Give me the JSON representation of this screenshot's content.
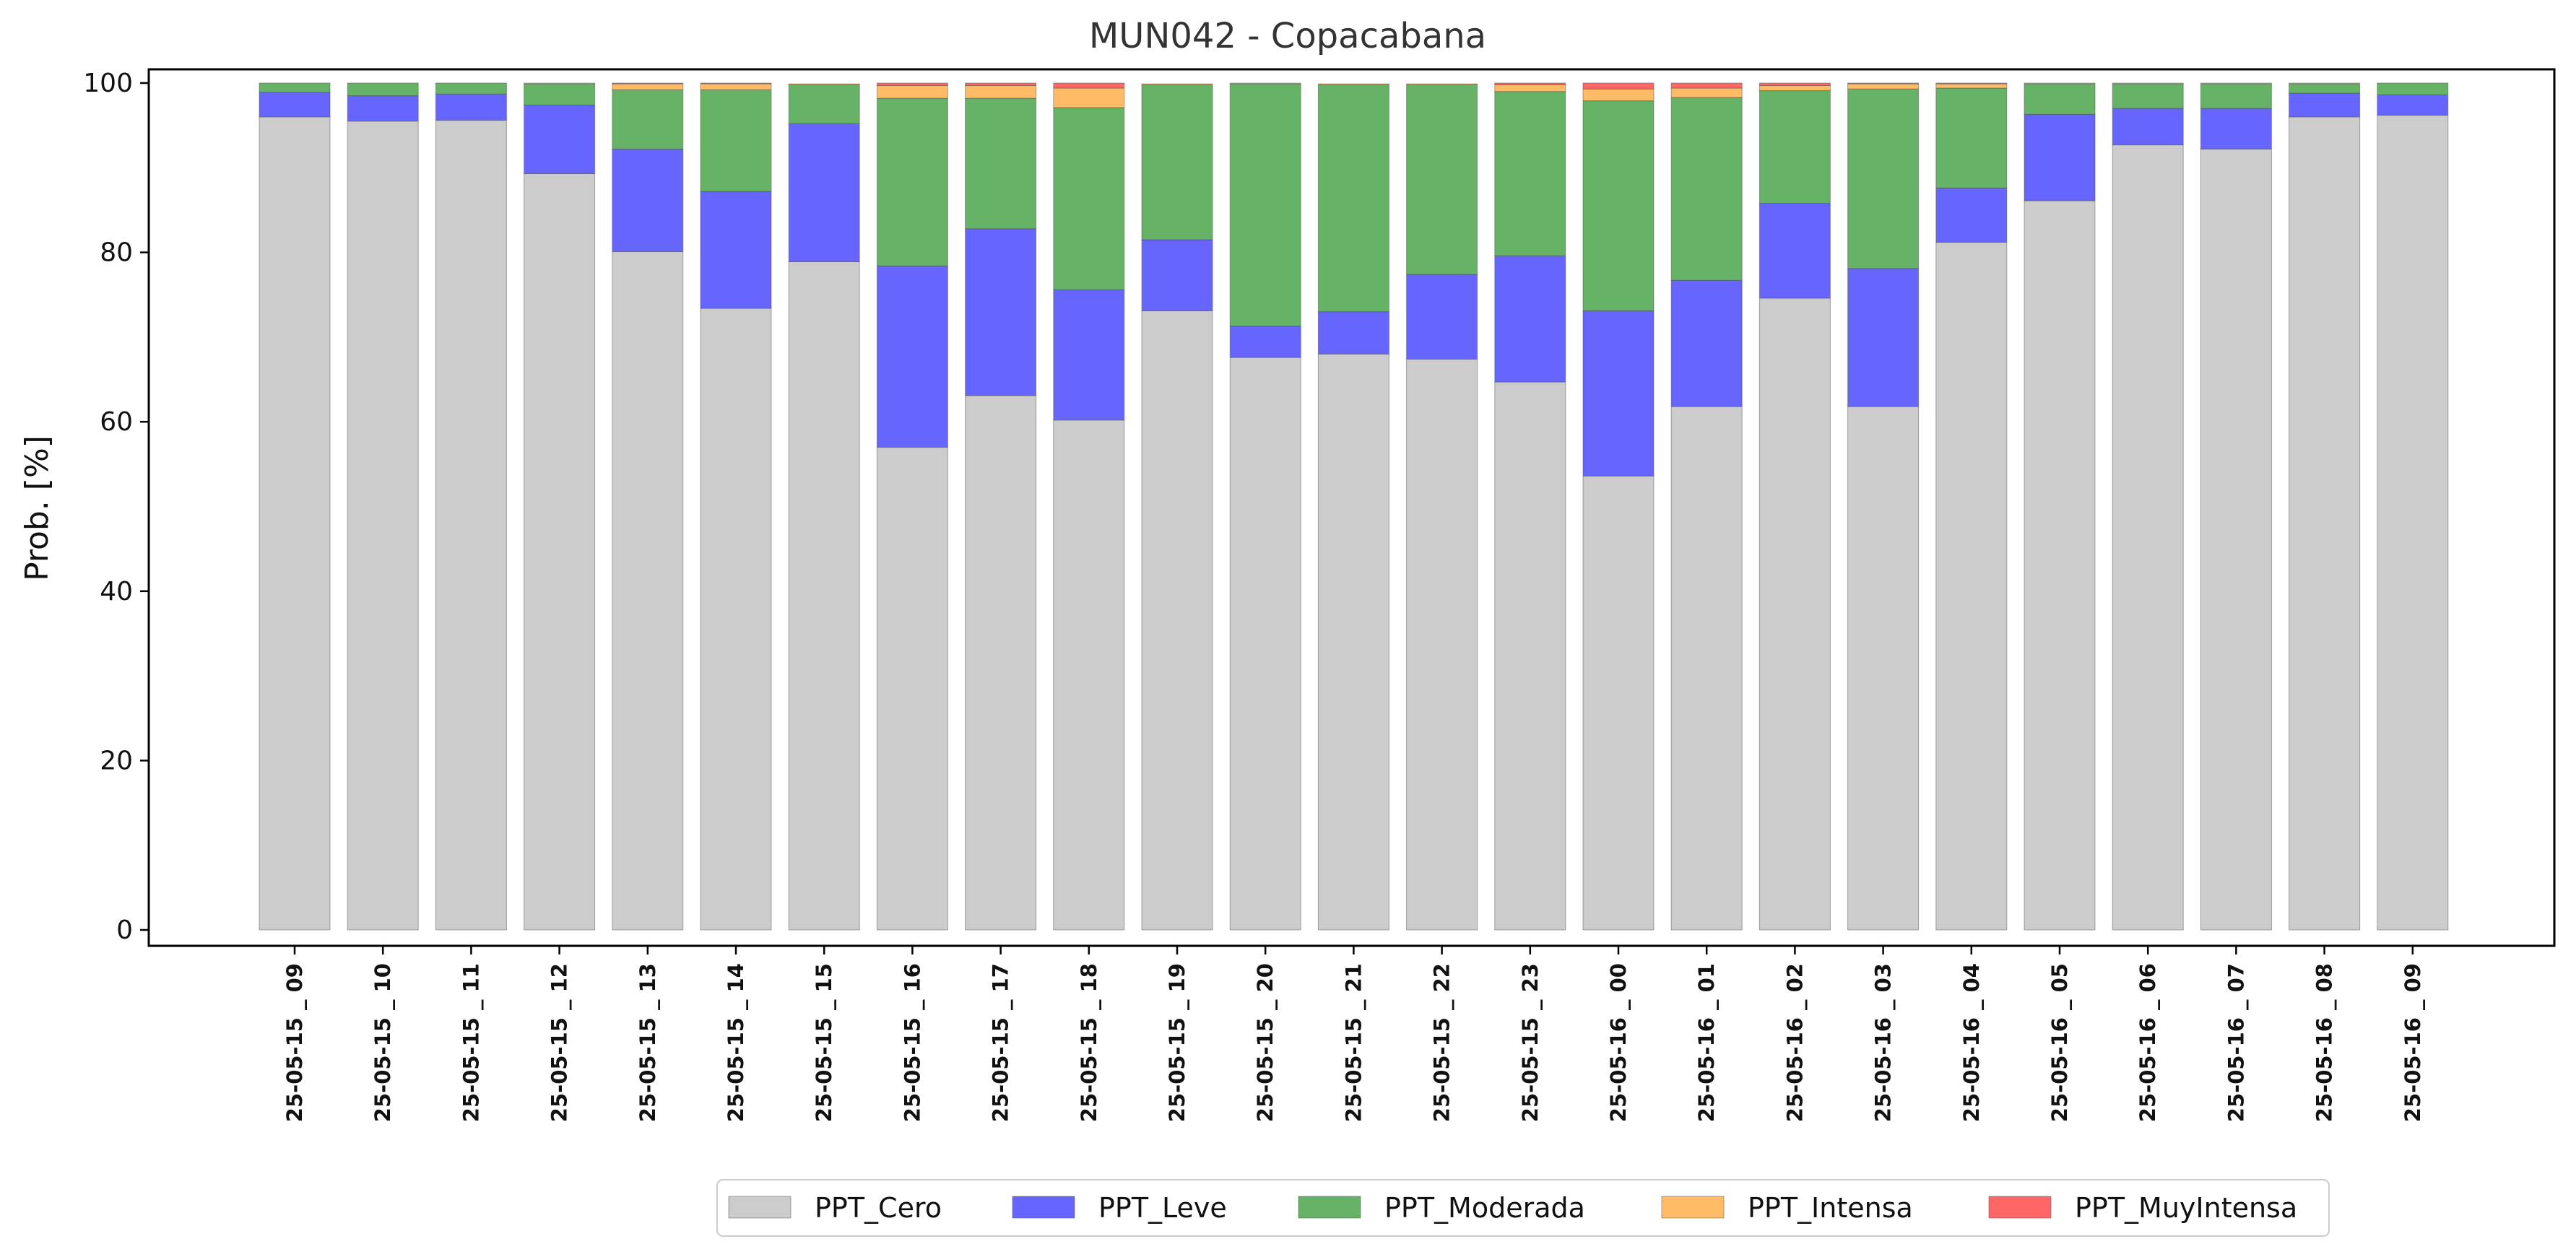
{
  "chart_data": {
    "type": "bar",
    "stacked": true,
    "title": "MUN042 - Copacabana",
    "xlabel": "",
    "ylabel": "Prob. [%]",
    "ylim": [
      -2,
      102
    ],
    "yticks": [
      0,
      20,
      40,
      60,
      80,
      100
    ],
    "legend": "bottom-center",
    "categories": [
      "25-05-15 _ 09",
      "25-05-15 _ 10",
      "25-05-15 _ 11",
      "25-05-15 _ 12",
      "25-05-15 _ 13",
      "25-05-15 _ 14",
      "25-05-15 _ 15",
      "25-05-15 _ 16",
      "25-05-15 _ 17",
      "25-05-15 _ 18",
      "25-05-15 _ 19",
      "25-05-15 _ 20",
      "25-05-15 _ 21",
      "25-05-15 _ 22",
      "25-05-15 _ 23",
      "25-05-16 _ 00",
      "25-05-16 _ 01",
      "25-05-16 _ 02",
      "25-05-16 _ 03",
      "25-05-16 _ 04",
      "25-05-16 _ 05",
      "25-05-16 _ 06",
      "25-05-16 _ 07",
      "25-05-16 _ 08",
      "25-05-16 _ 09"
    ],
    "series": [
      {
        "name": "PPT_Cero",
        "color": "#cccccc",
        "values": [
          96.0,
          95.5,
          95.6,
          89.3,
          80.1,
          73.4,
          78.9,
          57.0,
          63.1,
          60.2,
          73.1,
          67.6,
          68.0,
          67.4,
          64.7,
          53.6,
          61.8,
          74.6,
          61.8,
          81.2,
          86.1,
          92.7,
          92.2,
          96.0,
          96.2
        ]
      },
      {
        "name": "PPT_Leve",
        "color": "#6666ff",
        "values": [
          2.9,
          3.0,
          3.1,
          8.1,
          12.1,
          13.8,
          16.3,
          21.4,
          19.7,
          15.4,
          8.4,
          3.7,
          5.0,
          10.0,
          14.9,
          19.5,
          14.9,
          11.2,
          16.3,
          6.4,
          10.2,
          4.3,
          4.8,
          2.8,
          2.4
        ]
      },
      {
        "name": "PPT_Moderada",
        "color": "#66b266",
        "values": [
          1.1,
          1.5,
          1.3,
          2.5,
          7.0,
          12.0,
          4.6,
          19.8,
          15.4,
          21.5,
          18.3,
          28.6,
          26.8,
          22.4,
          19.4,
          24.8,
          21.6,
          13.3,
          21.2,
          11.8,
          3.6,
          2.9,
          2.9,
          1.1,
          1.4
        ]
      },
      {
        "name": "PPT_Intensa",
        "color": "#ffbb66",
        "values": [
          0,
          0,
          0,
          0.1,
          0.7,
          0.7,
          0.1,
          1.5,
          1.5,
          2.3,
          0.1,
          0.1,
          0.1,
          0.1,
          0.8,
          1.4,
          1.1,
          0.6,
          0.6,
          0.5,
          0.1,
          0.1,
          0.1,
          0.1,
          0
        ]
      },
      {
        "name": "PPT_MuyIntensa",
        "color": "#ff6666",
        "values": [
          0,
          0,
          0,
          0,
          0.1,
          0.1,
          0,
          0.3,
          0.3,
          0.6,
          0,
          0,
          0,
          0,
          0.2,
          0.7,
          0.6,
          0.3,
          0.1,
          0.1,
          0,
          0,
          0,
          0,
          0
        ]
      }
    ]
  }
}
